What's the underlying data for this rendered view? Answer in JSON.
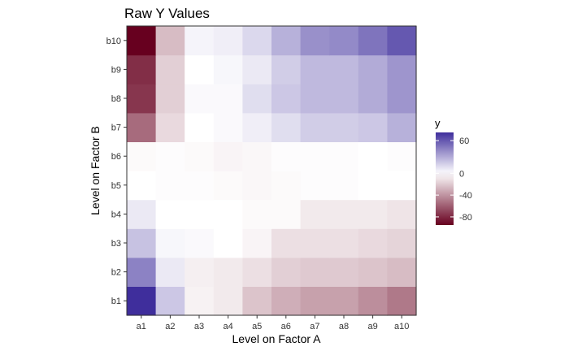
{
  "chart_data": {
    "type": "heatmap",
    "title": "Raw Y Values",
    "xlabel": "Level on Factor A",
    "ylabel": "Level on Factor B",
    "x_categories": [
      "a1",
      "a2",
      "a3",
      "a4",
      "a5",
      "a6",
      "a7",
      "a8",
      "a9",
      "a10"
    ],
    "y_categories": [
      "b1",
      "b2",
      "b3",
      "b4",
      "b5",
      "b6",
      "b7",
      "b8",
      "b9",
      "b10"
    ],
    "values": [
      [
        75,
        20,
        -5,
        -8,
        -22,
        -30,
        -35,
        -35,
        -42,
        -50
      ],
      [
        45,
        8,
        -6,
        -8,
        -12,
        -18,
        -20,
        -20,
        -22,
        -25
      ],
      [
        22,
        3,
        2,
        0,
        -4,
        -12,
        -12,
        -12,
        -14,
        -16
      ],
      [
        8,
        0,
        0,
        0,
        -2,
        -2,
        -8,
        -8,
        -8,
        -10
      ],
      [
        0,
        -1,
        -1,
        -2,
        -3,
        -2,
        -1,
        -1,
        0,
        0
      ],
      [
        -2,
        -1,
        -2,
        -4,
        -3,
        -1,
        -1,
        -1,
        0,
        -1
      ],
      [
        -55,
        -14,
        0,
        2,
        6,
        12,
        18,
        18,
        20,
        28
      ],
      [
        -75,
        -18,
        2,
        2,
        12,
        20,
        25,
        25,
        30,
        38
      ],
      [
        -78,
        -18,
        0,
        3,
        8,
        18,
        25,
        25,
        30,
        38
      ],
      [
        -95,
        -25,
        4,
        6,
        14,
        28,
        40,
        42,
        50,
        60
      ]
    ],
    "colorbar": {
      "title": "y",
      "ticks": [
        60,
        0,
        -40,
        -80
      ],
      "range": [
        -95,
        75
      ],
      "colors": {
        "low": "#67001f",
        "mid": "#ffffff",
        "high": "#3f2e9c"
      }
    },
    "panel_border": "#333333",
    "legend_position": "right"
  }
}
